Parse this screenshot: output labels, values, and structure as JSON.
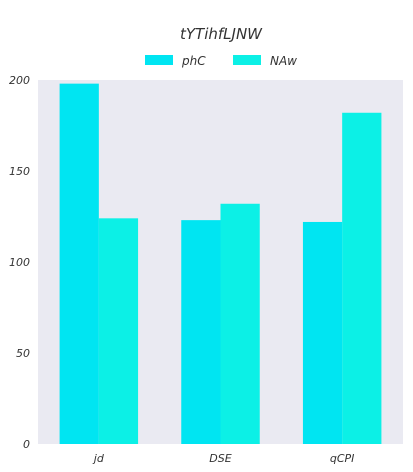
{
  "chart_data": {
    "type": "bar",
    "title": "tYTihfLJNW",
    "categories": [
      "jd",
      "DSE",
      "qCPI"
    ],
    "series": [
      {
        "name": "phC",
        "values": [
          198,
          123,
          122
        ],
        "color": "#00e5f2"
      },
      {
        "name": "NAw",
        "values": [
          124,
          132,
          182
        ],
        "color": "#0cf0e6"
      }
    ],
    "xlabel": "",
    "ylabel": "",
    "ylim": [
      0,
      200
    ],
    "yticks": [
      0,
      50,
      100,
      150,
      200
    ],
    "grid": false,
    "legend": "top-center",
    "background": "#eaeaf2"
  }
}
